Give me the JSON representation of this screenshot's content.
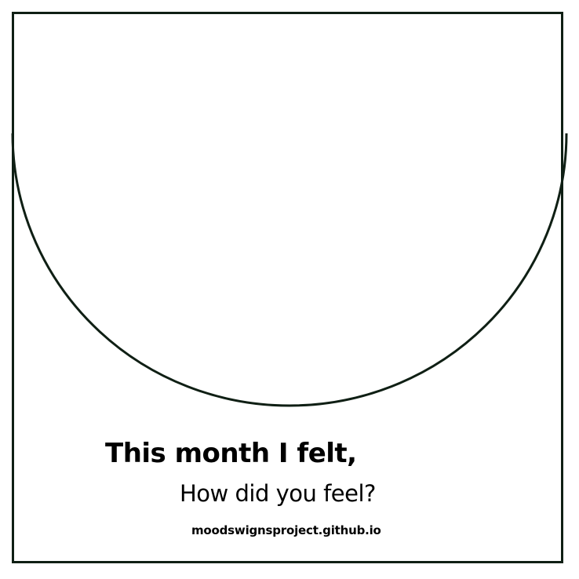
{
  "card": {
    "headline": "This month I felt,",
    "question": "How did you feel?",
    "website": "moodswignsproject.github.io"
  },
  "colors": {
    "background": "#ffffff",
    "stroke": "#0f1f14",
    "text": "#000000"
  }
}
